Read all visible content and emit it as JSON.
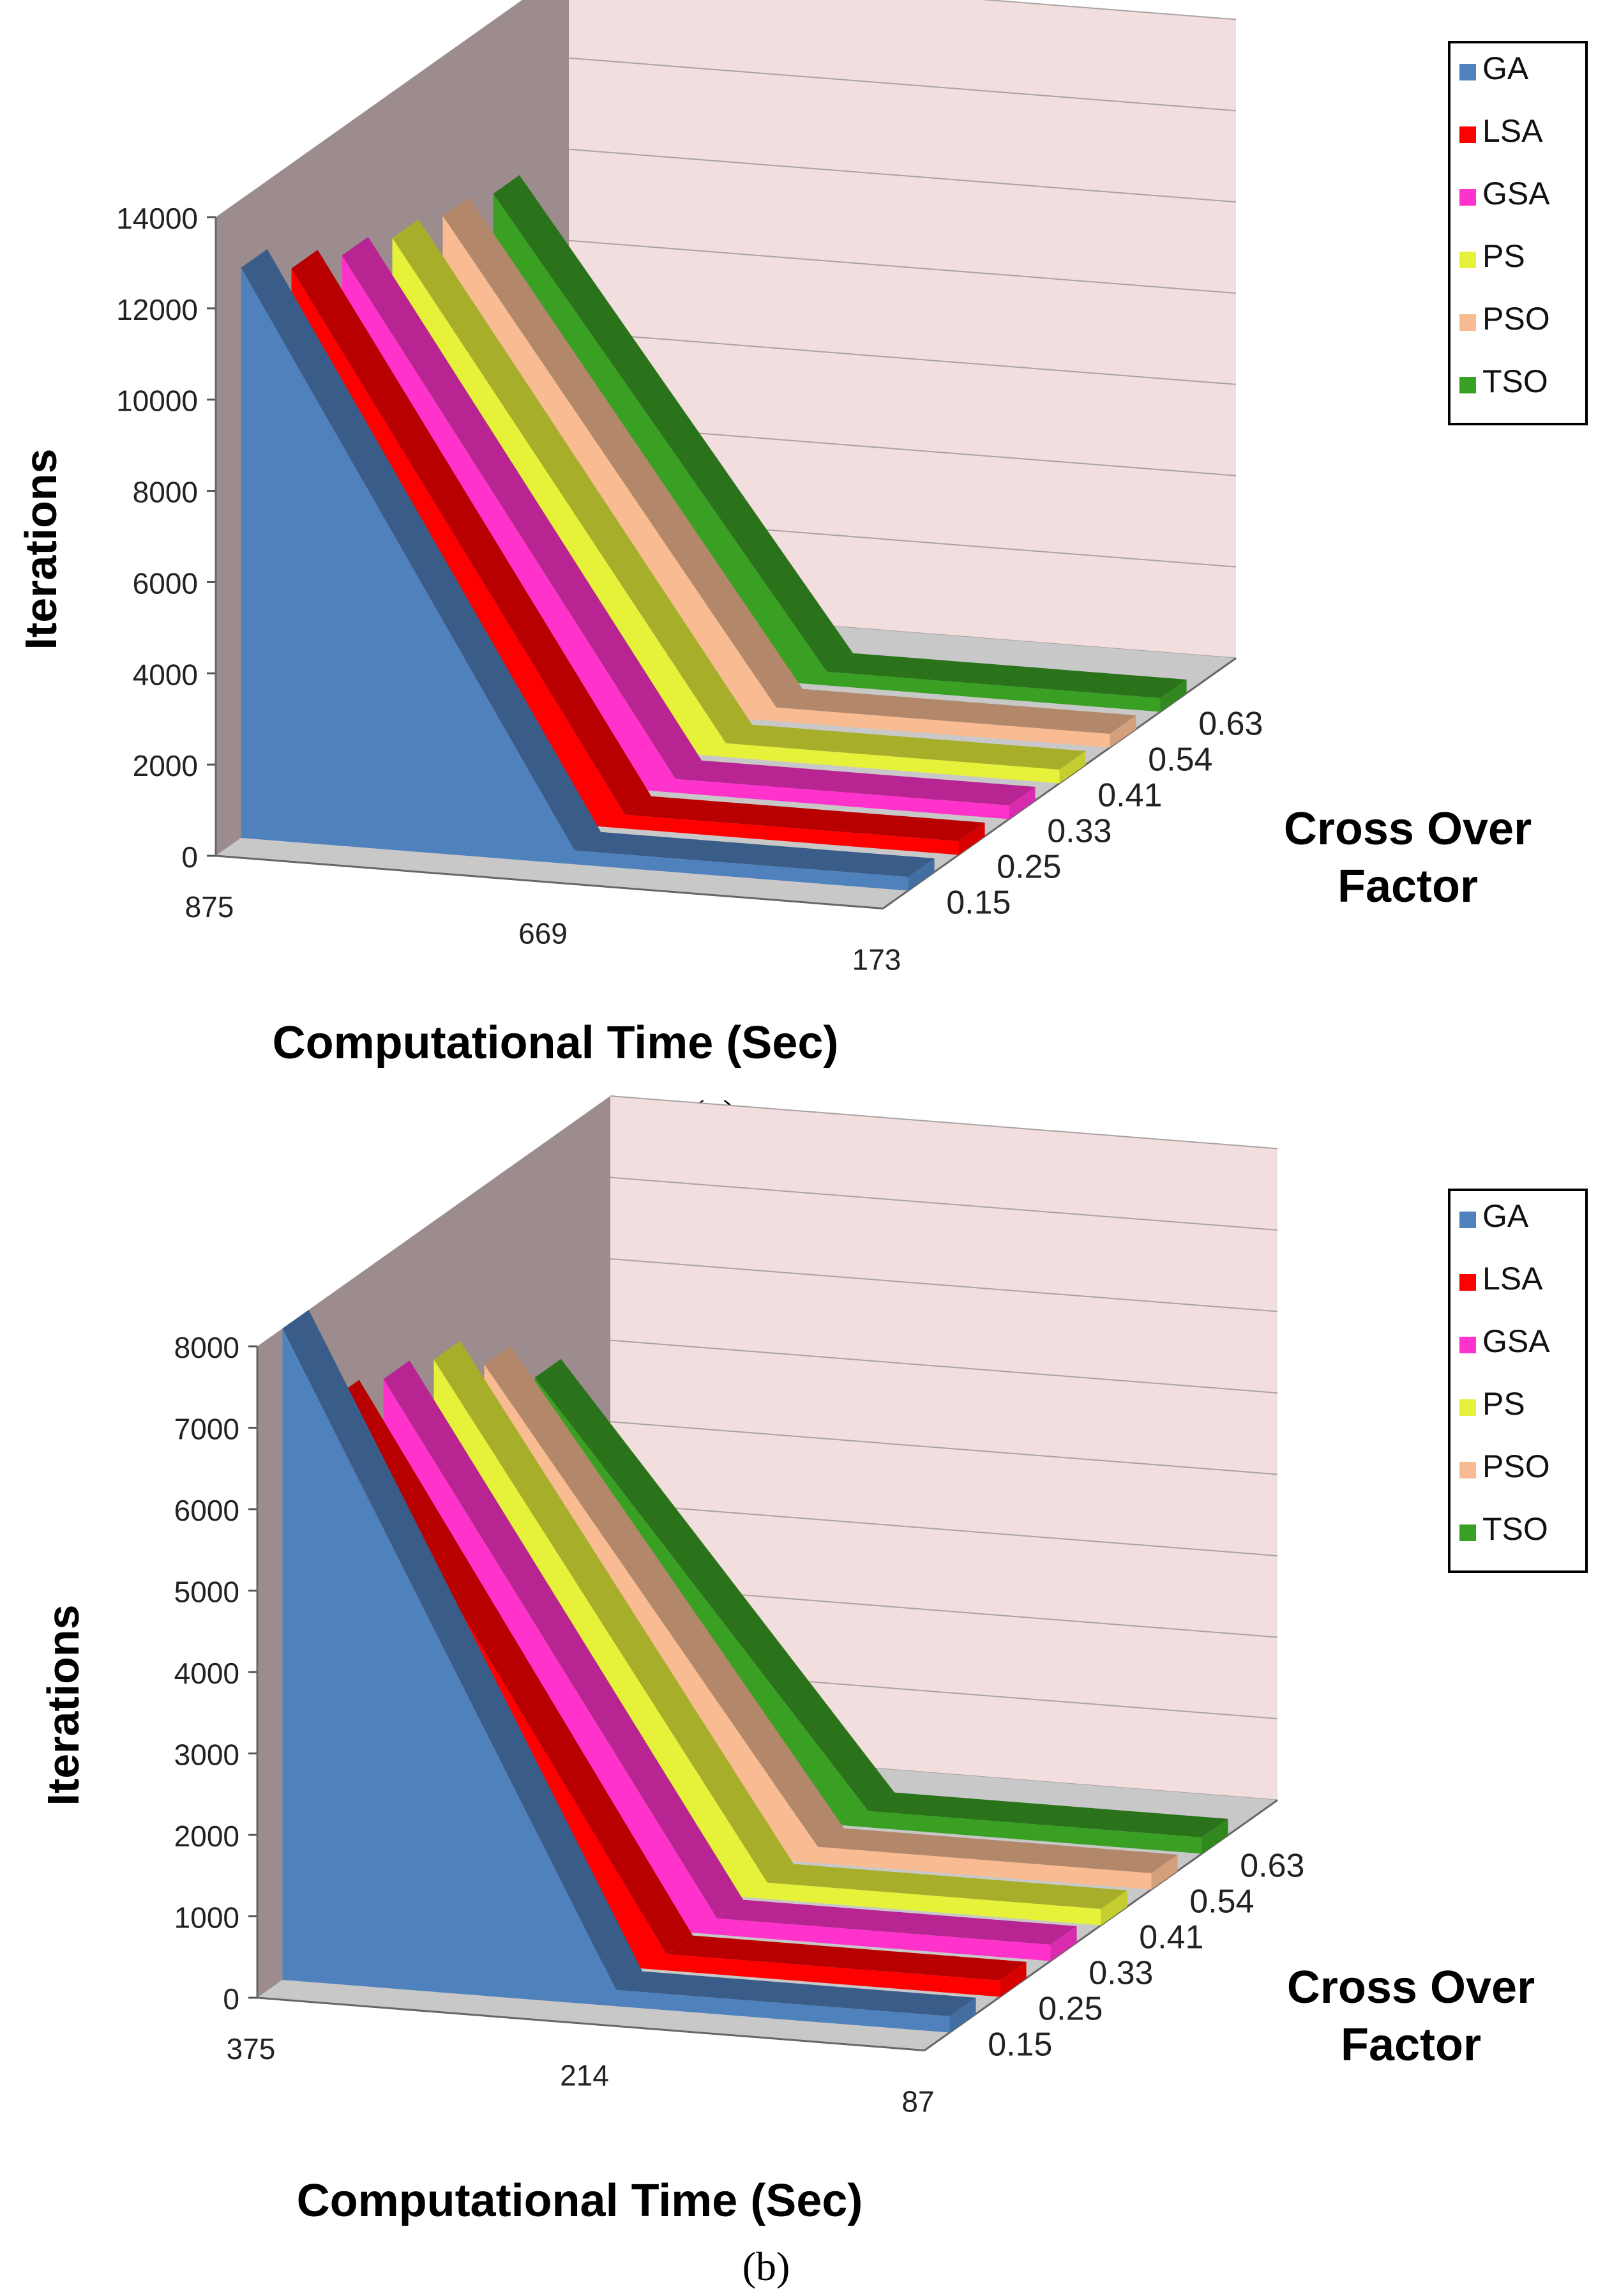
{
  "colors": {
    "GA": "#4F81BD",
    "LSA": "#FF0000",
    "GSA": "#FF33CC",
    "PS": "#E6F23A",
    "PSO": "#F9BC92",
    "TSO": "#3AA024",
    "back_wall": "#F3DEDF",
    "side_wall": "#9C8C8E",
    "floor": "#C8C8C8"
  },
  "chart_data": [
    {
      "type": "area3d",
      "panel_caption": "(a)",
      "xlabel": "Computational Time (Sec)",
      "ylabel": "Iterations",
      "zlabel_line1": "Cross Over",
      "zlabel_line2": "Factor",
      "categories": [
        "875",
        "669",
        "173"
      ],
      "y_ticks": [
        "0",
        "2000",
        "4000",
        "6000",
        "8000",
        "10000",
        "12000",
        "14000"
      ],
      "ylim": [
        0,
        14000
      ],
      "z_ticks": [
        "0.15",
        "0.25",
        "0.33",
        "0.41",
        "0.54",
        "0.63"
      ],
      "legend": [
        "GA",
        "LSA",
        "GSA",
        "PS",
        "PSO",
        "TSO"
      ],
      "series": [
        {
          "name": "GA",
          "values": [
            12500,
            300,
            300
          ]
        },
        {
          "name": "LSA",
          "values": [
            11700,
            300,
            300
          ]
        },
        {
          "name": "GSA",
          "values": [
            11200,
            300,
            300
          ]
        },
        {
          "name": "PS",
          "values": [
            10800,
            300,
            300
          ]
        },
        {
          "name": "PSO",
          "values": [
            10500,
            300,
            300
          ]
        },
        {
          "name": "TSO",
          "values": [
            10200,
            300,
            300
          ]
        }
      ]
    },
    {
      "type": "area3d",
      "panel_caption": "(b)",
      "xlabel": "Computational Time (Sec)",
      "ylabel": "Iterations",
      "zlabel_line1": "Cross Over",
      "zlabel_line2": "Factor",
      "categories": [
        "375",
        "214",
        "87"
      ],
      "y_ticks": [
        "0",
        "1000",
        "2000",
        "3000",
        "4000",
        "5000",
        "6000",
        "7000",
        "8000"
      ],
      "ylim": [
        0,
        8000
      ],
      "z_ticks": [
        "0.15",
        "0.25",
        "0.33",
        "0.41",
        "0.54",
        "0.63"
      ],
      "legend": [
        "GA",
        "LSA",
        "GSA",
        "PS",
        "PSO",
        "TSO"
      ],
      "series": [
        {
          "name": "GA",
          "values": [
            8000,
            200,
            200
          ]
        },
        {
          "name": "LSA",
          "values": [
            6700,
            200,
            200
          ]
        },
        {
          "name": "GSA",
          "values": [
            6500,
            200,
            200
          ]
        },
        {
          "name": "PS",
          "values": [
            6300,
            200,
            200
          ]
        },
        {
          "name": "PSO",
          "values": [
            5800,
            200,
            200
          ]
        },
        {
          "name": "TSO",
          "values": [
            5200,
            200,
            200
          ]
        }
      ]
    }
  ]
}
